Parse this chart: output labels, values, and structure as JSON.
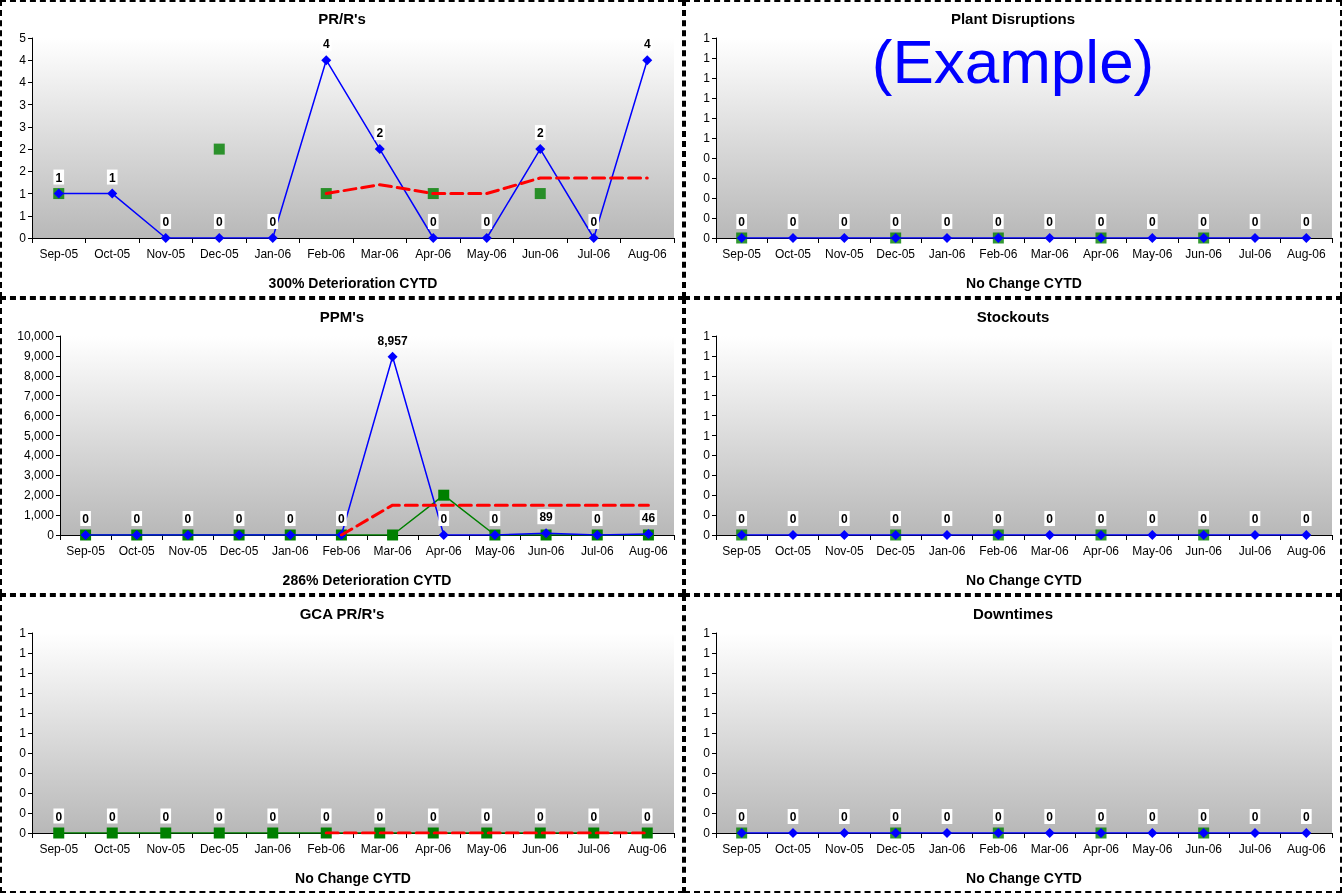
{
  "chart_data": [
    {
      "type": "line",
      "title": "PR/R's",
      "xlabel": "300% Deterioration CYTD",
      "categories": [
        "Sep-05",
        "Oct-05",
        "Nov-05",
        "Dec-05",
        "Jan-06",
        "Feb-06",
        "Mar-06",
        "Apr-06",
        "May-06",
        "Jun-06",
        "Jul-06",
        "Aug-06"
      ],
      "ylim": [
        0,
        4.5
      ],
      "yticks": [
        0,
        {
          "value": 0.5,
          "label": "1"
        },
        1,
        {
          "value": 1.5,
          "label": "2"
        },
        2,
        {
          "value": 2.5,
          "label": "3"
        },
        3,
        {
          "value": 3.5,
          "label": "4"
        },
        4,
        {
          "value": 4.5,
          "label": "5"
        }
      ],
      "series": [
        {
          "type": "line",
          "color": "#0000ff",
          "marker": "diamond",
          "values": [
            1,
            1,
            0,
            0,
            0,
            4,
            2,
            0,
            0,
            2,
            0,
            4
          ],
          "value_labels": [
            "1",
            "1",
            "0",
            "0",
            "0",
            "4",
            "2",
            "0",
            "0",
            "2",
            "0",
            "4"
          ]
        },
        {
          "type": "scatter",
          "color": "#008000",
          "marker": "square",
          "values": [
            1,
            null,
            null,
            2,
            null,
            1,
            null,
            1,
            null,
            1,
            null,
            null
          ]
        },
        {
          "type": "line",
          "color": "#ff0000",
          "marker": "none",
          "line_style": "dashed",
          "values": [
            null,
            null,
            null,
            null,
            null,
            1,
            1.2,
            1,
            1,
            1.35,
            1.35,
            1.35
          ]
        }
      ]
    },
    {
      "type": "line",
      "title": "Plant Disruptions",
      "xlabel": "No Change CYTD",
      "annotations": [
        "(Example)"
      ],
      "categories": [
        "Sep-05",
        "Oct-05",
        "Nov-05",
        "Dec-05",
        "Jan-06",
        "Feb-06",
        "Mar-06",
        "Apr-06",
        "May-06",
        "Jun-06",
        "Jul-06",
        "Aug-06"
      ],
      "ylim": [
        0,
        1
      ],
      "yticks": [
        0,
        {
          "value": 0.1,
          "label": "0"
        },
        {
          "value": 0.2,
          "label": "0"
        },
        {
          "value": 0.3,
          "label": "0"
        },
        {
          "value": 0.4,
          "label": "0"
        },
        {
          "value": 0.5,
          "label": "1"
        },
        {
          "value": 0.6,
          "label": "1"
        },
        {
          "value": 0.7,
          "label": "1"
        },
        {
          "value": 0.8,
          "label": "1"
        },
        {
          "value": 0.9,
          "label": "1"
        },
        1
      ],
      "series": [
        {
          "type": "line",
          "color": "#0000ff",
          "marker": "diamond",
          "values": [
            0,
            0,
            0,
            0,
            0,
            0,
            0,
            0,
            0,
            0,
            0,
            0
          ],
          "value_labels": [
            "0",
            "0",
            "0",
            "0",
            "0",
            "0",
            "0",
            "0",
            "0",
            "0",
            "0",
            "0"
          ]
        },
        {
          "type": "scatter",
          "color": "#008000",
          "marker": "square",
          "values": [
            0,
            null,
            null,
            0,
            null,
            0,
            null,
            0,
            null,
            0,
            null,
            null
          ]
        }
      ]
    },
    {
      "type": "line",
      "title": "PPM's",
      "xlabel": "286% Deterioration CYTD",
      "categories": [
        "Sep-05",
        "Oct-05",
        "Nov-05",
        "Dec-05",
        "Jan-06",
        "Feb-06",
        "Mar-06",
        "Apr-06",
        "May-06",
        "Jun-06",
        "Jul-06",
        "Aug-06"
      ],
      "ylim": [
        0,
        10000
      ],
      "yticks": [
        0,
        {
          "value": 1000,
          "label": "1,000"
        },
        {
          "value": 2000,
          "label": "2,000"
        },
        {
          "value": 3000,
          "label": "3,000"
        },
        {
          "value": 4000,
          "label": "4,000"
        },
        {
          "value": 5000,
          "label": "5,000"
        },
        {
          "value": 6000,
          "label": "6,000"
        },
        {
          "value": 7000,
          "label": "7,000"
        },
        {
          "value": 8000,
          "label": "8,000"
        },
        {
          "value": 9000,
          "label": "9,000"
        },
        {
          "value": 10000,
          "label": "10,000"
        }
      ],
      "series": [
        {
          "type": "line",
          "color": "#0000ff",
          "marker": "diamond",
          "values": [
            0,
            0,
            0,
            0,
            0,
            0,
            8957,
            0,
            0,
            89,
            0,
            46
          ],
          "value_labels": [
            "0",
            "0",
            "0",
            "0",
            "0",
            "0",
            "8,957",
            "0",
            "0",
            "89",
            "0",
            "46"
          ]
        },
        {
          "type": "line",
          "color": "#008000",
          "marker": "square",
          "values": [
            0,
            0,
            0,
            0,
            0,
            0,
            0,
            2000,
            0,
            0,
            0,
            0
          ]
        },
        {
          "type": "line",
          "color": "#ff0000",
          "marker": "none",
          "line_style": "dashed",
          "values": [
            null,
            null,
            null,
            null,
            null,
            0,
            1500,
            1500,
            1500,
            1500,
            1500,
            1500
          ]
        }
      ]
    },
    {
      "type": "line",
      "title": "Stockouts",
      "xlabel": "No Change CYTD",
      "categories": [
        "Sep-05",
        "Oct-05",
        "Nov-05",
        "Dec-05",
        "Jan-06",
        "Feb-06",
        "Mar-06",
        "Apr-06",
        "May-06",
        "Jun-06",
        "Jul-06",
        "Aug-06"
      ],
      "ylim": [
        0,
        1
      ],
      "yticks": [
        0,
        {
          "value": 0.1,
          "label": "0"
        },
        {
          "value": 0.2,
          "label": "0"
        },
        {
          "value": 0.3,
          "label": "0"
        },
        {
          "value": 0.4,
          "label": "0"
        },
        {
          "value": 0.5,
          "label": "1"
        },
        {
          "value": 0.6,
          "label": "1"
        },
        {
          "value": 0.7,
          "label": "1"
        },
        {
          "value": 0.8,
          "label": "1"
        },
        {
          "value": 0.9,
          "label": "1"
        },
        1
      ],
      "series": [
        {
          "type": "line",
          "color": "#0000ff",
          "marker": "diamond",
          "values": [
            0,
            0,
            0,
            0,
            0,
            0,
            0,
            0,
            0,
            0,
            0,
            0
          ],
          "value_labels": [
            "0",
            "0",
            "0",
            "0",
            "0",
            "0",
            "0",
            "0",
            "0",
            "0",
            "0",
            "0"
          ]
        },
        {
          "type": "scatter",
          "color": "#008000",
          "marker": "square",
          "values": [
            0,
            null,
            null,
            0,
            null,
            0,
            null,
            0,
            null,
            0,
            null,
            null
          ]
        }
      ]
    },
    {
      "type": "line",
      "title": "GCA PR/R's",
      "xlabel": "No Change CYTD",
      "categories": [
        "Sep-05",
        "Oct-05",
        "Nov-05",
        "Dec-05",
        "Jan-06",
        "Feb-06",
        "Mar-06",
        "Apr-06",
        "May-06",
        "Jun-06",
        "Jul-06",
        "Aug-06"
      ],
      "ylim": [
        0,
        1
      ],
      "yticks": [
        0,
        {
          "value": 0.1,
          "label": "0"
        },
        {
          "value": 0.2,
          "label": "0"
        },
        {
          "value": 0.3,
          "label": "0"
        },
        {
          "value": 0.4,
          "label": "0"
        },
        {
          "value": 0.5,
          "label": "1"
        },
        {
          "value": 0.6,
          "label": "1"
        },
        {
          "value": 0.7,
          "label": "1"
        },
        {
          "value": 0.8,
          "label": "1"
        },
        {
          "value": 0.9,
          "label": "1"
        },
        1
      ],
      "series": [
        {
          "type": "line",
          "color": "#008000",
          "marker": "square",
          "values": [
            0,
            0,
            0,
            0,
            0,
            0,
            0,
            0,
            0,
            0,
            0,
            0
          ],
          "value_labels": [
            "0",
            "0",
            "0",
            "0",
            "0",
            "0",
            "0",
            "0",
            "0",
            "0",
            "0",
            "0"
          ]
        },
        {
          "type": "line",
          "color": "#ff0000",
          "marker": "none",
          "line_style": "dashed",
          "values": [
            null,
            null,
            null,
            null,
            null,
            0,
            0,
            0,
            0,
            0,
            0,
            0
          ]
        }
      ]
    },
    {
      "type": "line",
      "title": "Downtimes",
      "xlabel": "No Change CYTD",
      "categories": [
        "Sep-05",
        "Oct-05",
        "Nov-05",
        "Dec-05",
        "Jan-06",
        "Feb-06",
        "Mar-06",
        "Apr-06",
        "May-06",
        "Jun-06",
        "Jul-06",
        "Aug-06"
      ],
      "ylim": [
        0,
        1
      ],
      "yticks": [
        0,
        {
          "value": 0.1,
          "label": "0"
        },
        {
          "value": 0.2,
          "label": "0"
        },
        {
          "value": 0.3,
          "label": "0"
        },
        {
          "value": 0.4,
          "label": "0"
        },
        {
          "value": 0.5,
          "label": "1"
        },
        {
          "value": 0.6,
          "label": "1"
        },
        {
          "value": 0.7,
          "label": "1"
        },
        {
          "value": 0.8,
          "label": "1"
        },
        {
          "value": 0.9,
          "label": "1"
        },
        1
      ],
      "series": [
        {
          "type": "line",
          "color": "#0000ff",
          "marker": "diamond",
          "values": [
            0,
            0,
            0,
            0,
            0,
            0,
            0,
            0,
            0,
            0,
            0,
            0
          ],
          "value_labels": [
            "0",
            "0",
            "0",
            "0",
            "0",
            "0",
            "0",
            "0",
            "0",
            "0",
            "0",
            "0"
          ]
        },
        {
          "type": "scatter",
          "color": "#008000",
          "marker": "square",
          "values": [
            0,
            null,
            null,
            0,
            null,
            0,
            null,
            0,
            null,
            0,
            null,
            null
          ]
        }
      ]
    }
  ]
}
